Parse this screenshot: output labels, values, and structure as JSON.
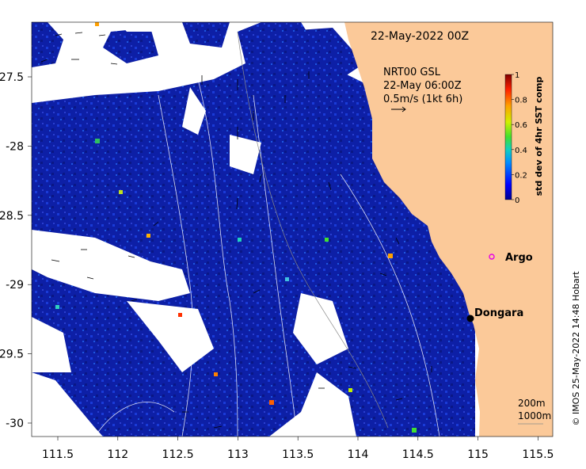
{
  "map": {
    "timestamp": "22-May-2022 00Z",
    "current_label": {
      "line1": "NRT00 GSL",
      "line2": "22-May 06:00Z",
      "line3": "0.5m/s (1kt 6h)"
    },
    "x_ticks": [
      "111.5",
      "112",
      "112.5",
      "113",
      "113.5",
      "114",
      "114.5",
      "115",
      "115.5"
    ],
    "y_ticks": [
      "-27.5",
      "-28",
      "-28.5",
      "-29",
      "-29.5",
      "-30"
    ],
    "places": [
      {
        "name": "Argo"
      },
      {
        "name": "Dongara"
      }
    ],
    "depth_labels": [
      "200m",
      "1000m"
    ],
    "credit": "© IMOS 25-May-2022 14:48 Hobart"
  },
  "colorbar": {
    "title": "std dev of 4hr SST comp",
    "ticks": [
      "1",
      "0.8",
      "0.6",
      "0.4",
      "0.2",
      "0"
    ]
  },
  "colors": {
    "land": "#fbc999",
    "ocean_low": "#0a1a9a",
    "no_data": "#ffffff",
    "argo_marker": "#e600e6"
  }
}
